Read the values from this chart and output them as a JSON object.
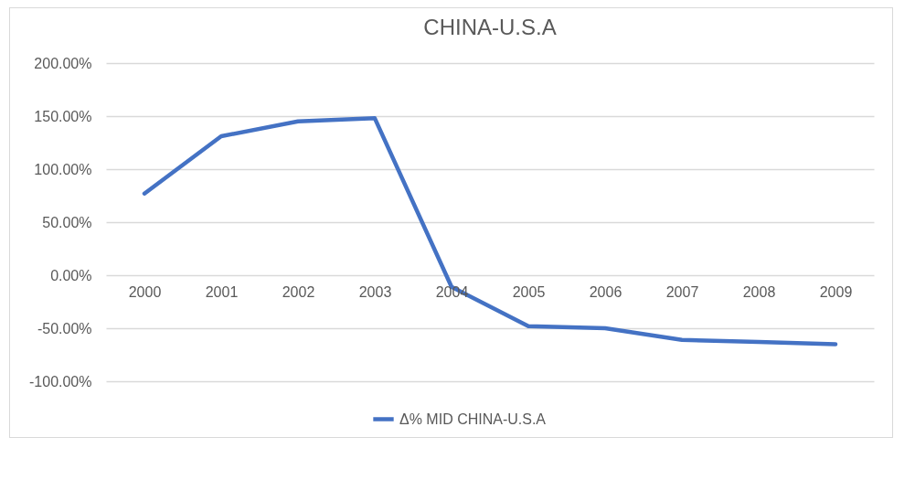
{
  "chart_data": {
    "type": "line",
    "title": "CHINA-U.S.A",
    "categories": [
      "2000",
      "2001",
      "2002",
      "2003",
      "2004",
      "2005",
      "2006",
      "2007",
      "2008",
      "2009"
    ],
    "series": [
      {
        "name": "Δ% MID CHINA-U.S.A",
        "color": "#4472c4",
        "values": [
          77,
          131,
          145,
          148,
          -11,
          -48,
          -50,
          -61,
          -63,
          -65
        ]
      }
    ],
    "ylim": [
      -100,
      200
    ],
    "yticks": [
      {
        "value": -100,
        "label": "-100.00%"
      },
      {
        "value": -50,
        "label": "-50.00%"
      },
      {
        "value": 0,
        "label": "0.00%"
      },
      {
        "value": 50,
        "label": "50.00%"
      },
      {
        "value": 100,
        "label": "100.00%"
      },
      {
        "value": 150,
        "label": "150.00%"
      },
      {
        "value": 200,
        "label": "200.00%"
      }
    ],
    "grid": "y",
    "legend": "bottom",
    "marker": "none",
    "line_style": "solid"
  }
}
